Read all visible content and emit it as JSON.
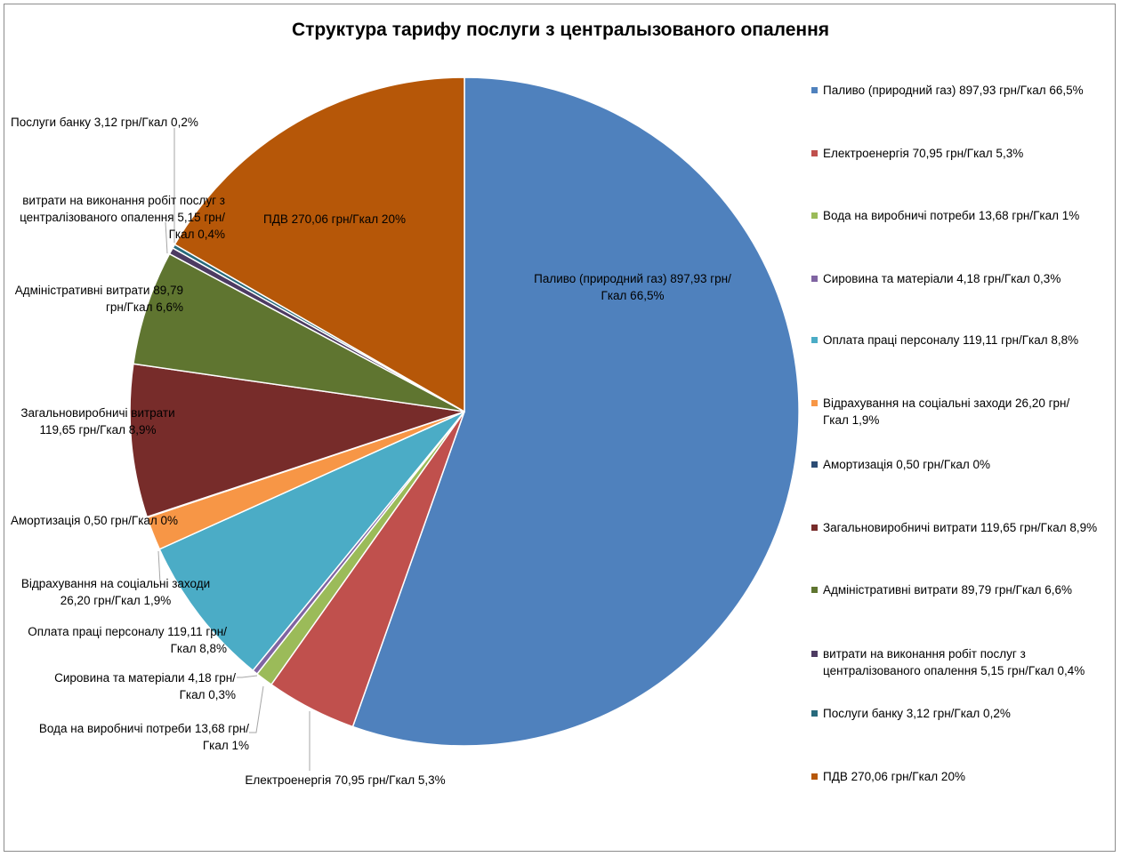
{
  "chart_data": {
    "type": "pie",
    "title": "Структура тарифу послуги з централызованого опалення",
    "legend_position": "right",
    "start_angle_deg": 0,
    "direction": "clockwise",
    "slices": [
      {
        "name": "Паливо (природний газ)",
        "value": 897.93,
        "legend_text": "Паливо (природний газ)  897,93 грн/Гкал 66,5%",
        "label_text": "Паливо (природний газ)  897,93 грн/Гкал 66,5%",
        "color": "#4f81bd"
      },
      {
        "name": "Електроенергія",
        "value": 70.95,
        "legend_text": "Електроенергія  70,95  грн/Гкал 5,3%",
        "label_text": "Електроенергія  70,95  грн/Гкал 5,3%",
        "color": "#c0504d"
      },
      {
        "name": "Вода на виробничі потреби",
        "value": 13.68,
        "legend_text": "Вода на виробничі потреби  13,68 грн/Гкал 1%",
        "label_text": "Вода на виробничі потреби  13,68 грн/Гкал 1%",
        "color": "#9bbb59"
      },
      {
        "name": "Сировина та матеріали",
        "value": 4.18,
        "legend_text": "Сировина та матеріали  4,18 грн/Гкал 0,3%",
        "label_text": "Сировина та матеріали  4,18 грн/Гкал 0,3%",
        "color": "#8064a2"
      },
      {
        "name": "Оплата праці персоналу",
        "value": 119.11,
        "legend_text": "Оплата праці персоналу  119,11  грн/Гкал 8,8%",
        "label_text": "Оплата праці персоналу  119,11 грн/Гкал 8,8%",
        "color": "#4bacc6"
      },
      {
        "name": "Відрахування на соціальні заходи",
        "value": 26.2,
        "legend_text": "Відрахування на соціальні заходи   26,20 грн/Гкал 1,9%",
        "label_text": "Відрахування на соціальні заходи 26,20 грн/Гкал 1,9%",
        "color": "#f79646"
      },
      {
        "name": "Амортизація",
        "value": 0.5,
        "legend_text": "Амортизація  0,50 грн/Гкал 0%",
        "label_text": "Амортизація  0,50 грн/Гкал 0%",
        "color": "#2c4d75"
      },
      {
        "name": "Загальновиробничі витрати",
        "value": 119.65,
        "legend_text": "Загальновиробничі витрати  119,65 грн/Гкал 8,9%",
        "label_text": "Загальновиробничі витрати 119,65 грн/Гкал 8,9%",
        "color": "#772c2a"
      },
      {
        "name": "Адміністративні витрати",
        "value": 89.79,
        "legend_text": "Адміністративні витрати 89,79  грн/Гкал 6,6%",
        "label_text": "Адміністративні витрати 89,79 грн/Гкал 6,6%",
        "color": "#5f7530"
      },
      {
        "name": "витрати на виконання робіт послуг з централізованого опалення",
        "value": 5.15,
        "legend_text": "витрати на виконання робіт послуг з централізованого опалення    5,15 грн/Гкал 0,4%",
        "label_text": "витрати на виконання робіт послуг з централізованого опалення   5,15 грн/Гкал 0,4%",
        "color": "#4d3b62"
      },
      {
        "name": "Послуги банку",
        "value": 3.12,
        "legend_text": "Послуги банку  3,12  грн/Гкал 0,2%",
        "label_text": "Послуги банку  3,12  грн/Гкал 0,2%",
        "color": "#276a7c"
      },
      {
        "name": "ПДВ",
        "value": 270.06,
        "legend_text": "ПДВ  270,06  грн/Гкал 20%",
        "label_text": "ПДВ  270,06  грн/Гкал 20%",
        "color": "#b65708"
      }
    ]
  }
}
